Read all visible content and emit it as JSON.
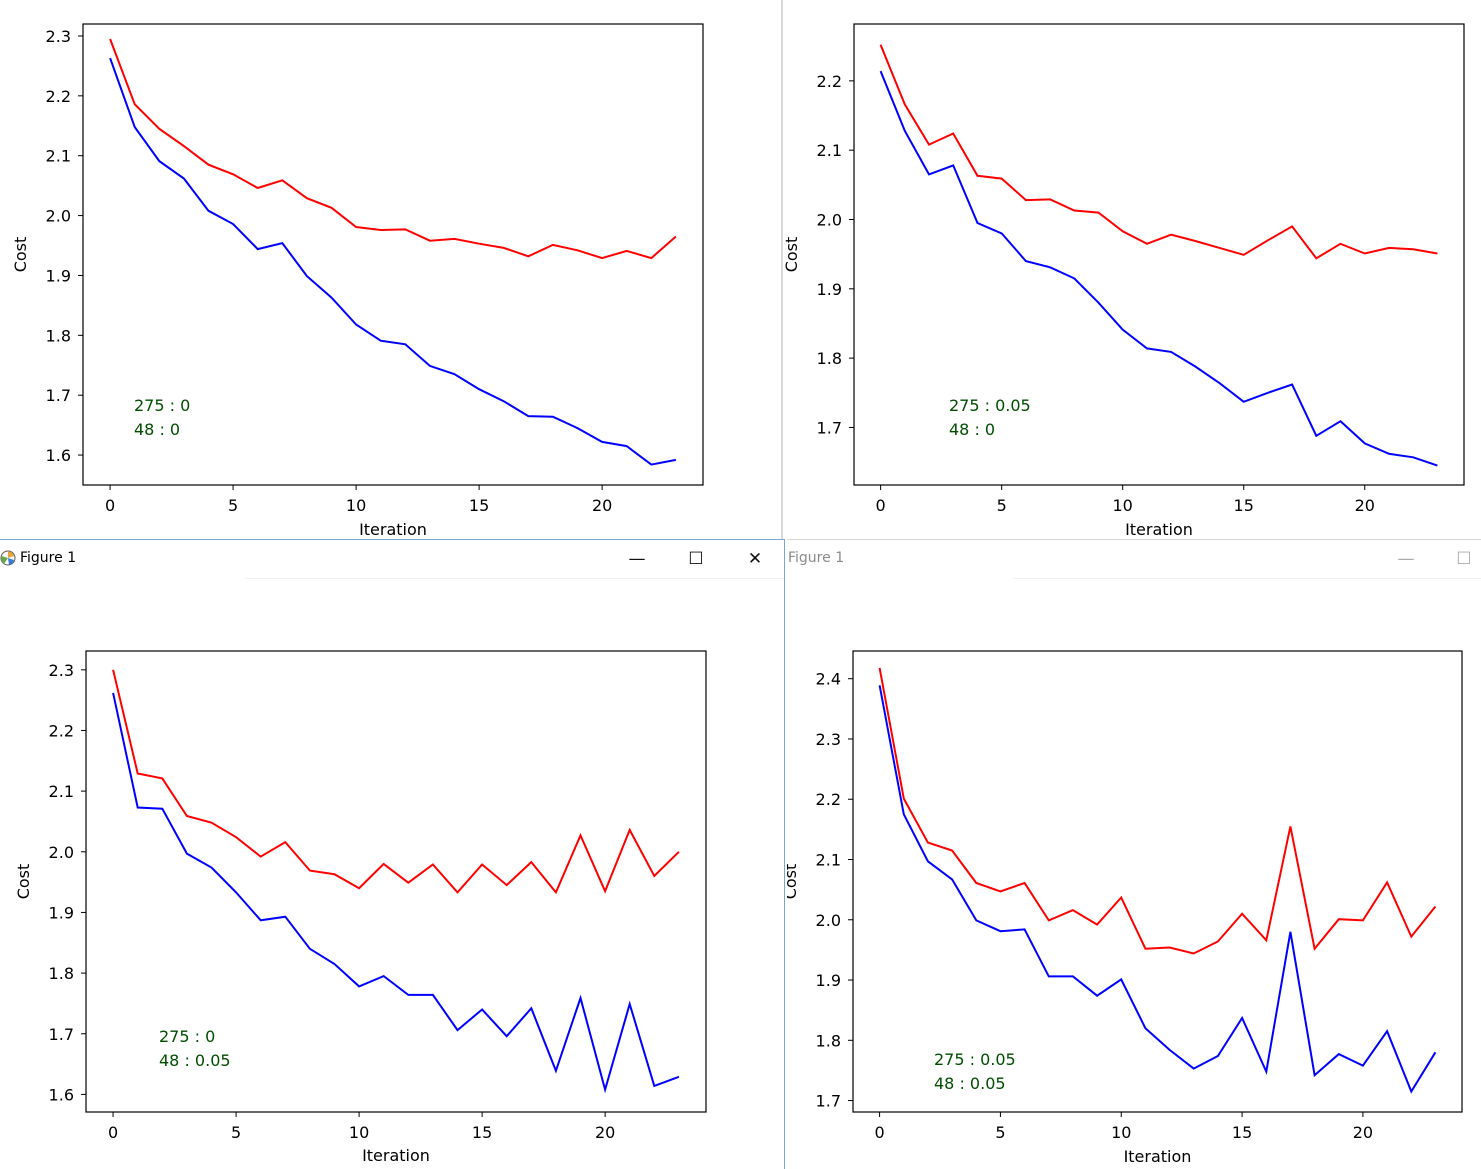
{
  "windows": [
    {
      "title": "",
      "controls": []
    },
    {
      "title": "",
      "controls": []
    },
    {
      "title": "Figure 1",
      "controls": [
        "—",
        "☐",
        "✕"
      ]
    },
    {
      "title": "Figure 1",
      "controls": [
        "—",
        "☐"
      ]
    }
  ],
  "colors": {
    "train": "#ff0000",
    "val": "#0000ff",
    "annotation": "#004d00"
  },
  "chart_data": [
    {
      "type": "line",
      "xlabel": "Iteration",
      "ylabel": "Cost",
      "xlim": [
        -1.1,
        24.1
      ],
      "ylim": [
        1.55,
        2.32
      ],
      "xticks": [
        0,
        5,
        10,
        15,
        20
      ],
      "yticks": [
        1.6,
        1.7,
        1.8,
        1.9,
        2.0,
        2.1,
        2.2,
        2.3
      ],
      "ytick_labels": [
        "1.6",
        "1.7",
        "1.8",
        "1.9",
        "2.0",
        "2.1",
        "2.2",
        "2.3"
      ],
      "annotations": [
        "275 : 0",
        "48 : 0"
      ],
      "series": [
        {
          "color": "#ff0000",
          "values": [
            2.295,
            2.186,
            2.145,
            2.116,
            2.085,
            2.069,
            2.046,
            2.059,
            2.029,
            2.013,
            1.981,
            1.976,
            1.977,
            1.958,
            1.961,
            1.953,
            1.946,
            1.932,
            1.951,
            1.942,
            1.929,
            1.941,
            1.929,
            1.965
          ]
        },
        {
          "color": "#0000ff",
          "values": [
            2.263,
            2.148,
            2.091,
            2.062,
            2.008,
            1.986,
            1.944,
            1.954,
            1.899,
            1.863,
            1.818,
            1.791,
            1.785,
            1.749,
            1.735,
            1.71,
            1.69,
            1.665,
            1.664,
            1.645,
            1.622,
            1.615,
            1.584,
            1.592
          ]
        }
      ]
    },
    {
      "type": "line",
      "xlabel": "Iteration",
      "ylabel": "Cost",
      "xlim": [
        -1.1,
        24.1
      ],
      "ylim": [
        1.617,
        2.282
      ],
      "xticks": [
        0,
        5,
        10,
        15,
        20
      ],
      "yticks": [
        1.7,
        1.8,
        1.9,
        2.0,
        2.1,
        2.2
      ],
      "ytick_labels": [
        "1.7",
        "1.8",
        "1.9",
        "2.0",
        "2.1",
        "2.2"
      ],
      "annotations": [
        "275 : 0.05",
        "48 : 0"
      ],
      "series": [
        {
          "color": "#ff0000",
          "values": [
            2.252,
            2.166,
            2.108,
            2.124,
            2.063,
            2.059,
            2.028,
            2.029,
            2.013,
            2.01,
            1.983,
            1.965,
            1.978,
            1.969,
            1.959,
            1.949,
            1.97,
            1.99,
            1.944,
            1.965,
            1.951,
            1.959,
            1.957,
            1.951
          ]
        },
        {
          "color": "#0000ff",
          "values": [
            2.214,
            2.128,
            2.065,
            2.078,
            1.995,
            1.98,
            1.94,
            1.931,
            1.915,
            1.88,
            1.841,
            1.814,
            1.809,
            1.788,
            1.764,
            1.737,
            1.75,
            1.762,
            1.688,
            1.709,
            1.677,
            1.662,
            1.657,
            1.645
          ]
        }
      ]
    },
    {
      "type": "line",
      "xlabel": "Iteration",
      "ylabel": "Cost",
      "xlim": [
        -1.1,
        24.1
      ],
      "ylim": [
        1.571,
        2.331
      ],
      "xticks": [
        0,
        5,
        10,
        15,
        20
      ],
      "yticks": [
        1.6,
        1.7,
        1.8,
        1.9,
        2.0,
        2.1,
        2.2,
        2.3
      ],
      "ytick_labels": [
        "1.6",
        "1.7",
        "1.8",
        "1.9",
        "2.0",
        "2.1",
        "2.2",
        "2.3"
      ],
      "annotations": [
        "275 : 0",
        "48 : 0.05"
      ],
      "series": [
        {
          "color": "#ff0000",
          "values": [
            2.3,
            2.129,
            2.121,
            2.059,
            2.048,
            2.024,
            1.992,
            2.016,
            1.969,
            1.963,
            1.94,
            1.98,
            1.949,
            1.979,
            1.933,
            1.979,
            1.945,
            1.983,
            1.933,
            2.027,
            1.935,
            2.036,
            1.96,
            2.0
          ]
        },
        {
          "color": "#0000ff",
          "values": [
            2.262,
            2.073,
            2.071,
            1.997,
            1.974,
            1.933,
            1.887,
            1.893,
            1.84,
            1.815,
            1.778,
            1.795,
            1.764,
            1.764,
            1.706,
            1.74,
            1.696,
            1.742,
            1.639,
            1.759,
            1.608,
            1.749,
            1.614,
            1.629
          ]
        }
      ]
    },
    {
      "type": "line",
      "xlabel": "Iteration",
      "ylabel": "Cost",
      "xlim": [
        -1.1,
        24.1
      ],
      "ylim": [
        1.681,
        2.446
      ],
      "xticks": [
        0,
        5,
        10,
        15,
        20
      ],
      "yticks": [
        1.7,
        1.8,
        1.9,
        2.0,
        2.1,
        2.2,
        2.3,
        2.4
      ],
      "ytick_labels": [
        "1.7",
        "1.8",
        "1.9",
        "2.0",
        "2.1",
        "2.2",
        "2.3",
        "2.4"
      ],
      "annotations": [
        "275 : 0.05",
        "48 : 0.05"
      ],
      "series": [
        {
          "color": "#ff0000",
          "values": [
            2.418,
            2.201,
            2.128,
            2.115,
            2.061,
            2.047,
            2.061,
            1.999,
            2.016,
            1.992,
            2.037,
            1.952,
            1.954,
            1.944,
            1.964,
            2.01,
            1.966,
            2.155,
            1.952,
            2.001,
            1.999,
            2.062,
            1.972,
            2.022
          ]
        },
        {
          "color": "#0000ff",
          "values": [
            2.389,
            2.175,
            2.097,
            2.067,
            1.999,
            1.981,
            1.984,
            1.906,
            1.906,
            1.874,
            1.901,
            1.82,
            1.784,
            1.753,
            1.774,
            1.837,
            1.748,
            1.98,
            1.742,
            1.777,
            1.758,
            1.815,
            1.715,
            1.78
          ]
        }
      ]
    }
  ]
}
